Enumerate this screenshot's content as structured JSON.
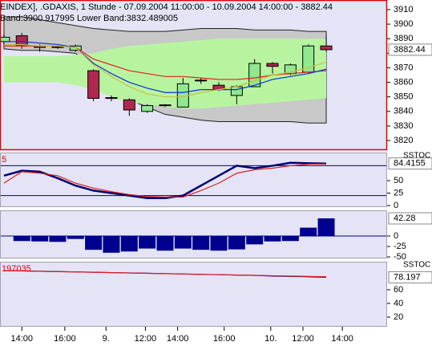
{
  "chart_data": [
    {
      "type": "candlestick",
      "title": "EINDEX], .GDAXIS, 1 Stunde - 07.09.2004 11:00:00 - 10.09.2004 14:00:00 - 3882.44",
      "subtitle": "Band:3900.917995 Lower Band:3832.489005",
      "x": [
        0,
        1,
        2,
        3,
        4,
        5,
        6,
        7,
        8,
        9,
        10,
        11,
        12,
        13,
        14,
        15,
        16,
        17,
        18
      ],
      "open": [
        3888,
        3892,
        3885,
        3884,
        3882,
        3868,
        3849,
        3848,
        3840,
        3844,
        3843,
        3861,
        3858,
        3851,
        3857,
        3873,
        3866,
        3867,
        3885
      ],
      "high": [
        3893,
        3894,
        3886,
        3885,
        3886,
        3869,
        3851,
        3849,
        3845,
        3845,
        3863,
        3863,
        3860,
        3858,
        3876,
        3874,
        3873,
        3886,
        3892
      ],
      "low": [
        3886,
        3883,
        3881,
        3883,
        3881,
        3847,
        3847,
        3837,
        3839,
        3843,
        3843,
        3859,
        3854,
        3845,
        3857,
        3866,
        3865,
        3866,
        3881
      ],
      "close": [
        3891,
        3885,
        3884,
        3884.5,
        3885,
        3849,
        3849.5,
        3841,
        3844,
        3844.5,
        3859,
        3861.5,
        3855,
        3857,
        3873,
        3871,
        3872,
        3885,
        3882.44
      ],
      "up_color": "#90e890",
      "down_color": "#b02850",
      "bands": [
        {
          "color": "#c8c8c8",
          "upper": [
            3905,
            3905,
            3903,
            3901,
            3899,
            3897,
            3896,
            3895,
            3895,
            3895,
            3896,
            3897,
            3897,
            3897,
            3896,
            3896,
            3896,
            3895,
            3895
          ],
          "lower": [
            3883,
            3882,
            3882,
            3881,
            3880,
            3870,
            3858,
            3848,
            3843,
            3838,
            3836,
            3834,
            3833,
            3833,
            3833,
            3833,
            3833,
            3832,
            3832
          ]
        },
        {
          "color": "#b8f4a0",
          "upper": [
            3878,
            3878,
            3878,
            3878,
            3879,
            3880,
            3883,
            3885,
            3886,
            3887,
            3888,
            3889,
            3890,
            3890,
            3890,
            3890,
            3890,
            3890,
            3890
          ],
          "lower": [
            3860,
            3860,
            3860,
            3860,
            3858,
            3855,
            3850,
            3846,
            3845,
            3843,
            3842,
            3842,
            3843,
            3844,
            3845,
            3846,
            3847,
            3848,
            3849
          ]
        }
      ],
      "series": [
        {
          "color": "#e02020",
          "values": [
            3885,
            3885,
            3885,
            3885,
            3884,
            3876,
            3872,
            3868,
            3866,
            3864,
            3864,
            3863,
            3862,
            3862,
            3863,
            3865,
            3866,
            3867,
            3868
          ]
        },
        {
          "color": "#1030d0",
          "values": [
            3888,
            3888,
            3887,
            3886,
            3884,
            3873,
            3866,
            3860,
            3856,
            3853,
            3853,
            3855,
            3855,
            3855,
            3858,
            3862,
            3864,
            3866,
            3869
          ]
        },
        {
          "color": "#c8c040",
          "values": [
            3886,
            3886,
            3885,
            3885,
            3884,
            3872,
            3864,
            3857,
            3852,
            3850,
            3850,
            3853,
            3855,
            3857,
            3861,
            3865,
            3867,
            3870,
            3874
          ]
        }
      ],
      "xlim": [
        -0.22,
        21.4
      ],
      "ylim": [
        3813.4,
        3916.6
      ],
      "yticks": [
        3820,
        3830,
        3840,
        3850,
        3860,
        3870,
        3880,
        3890,
        3900,
        3910
      ]
    },
    {
      "type": "line",
      "title": "5",
      "corner_label": "SSTOC",
      "x": [
        0,
        1,
        2,
        3,
        4,
        5,
        6,
        7,
        8,
        9,
        10,
        11,
        12,
        13,
        14,
        15,
        16,
        17,
        18
      ],
      "series": [
        {
          "color": "#000070",
          "values": [
            60,
            70,
            68,
            55,
            40,
            30,
            25,
            20,
            15,
            15,
            20,
            40,
            60,
            80,
            75,
            80,
            86,
            85,
            84.4155
          ]
        },
        {
          "color": "#e02020",
          "values": [
            45,
            68,
            65,
            60,
            45,
            35,
            28,
            22,
            18,
            17,
            17,
            30,
            45,
            65,
            72,
            75,
            80,
            83,
            84
          ]
        }
      ],
      "hlines": [
        80,
        20
      ],
      "xlim": [
        -0.22,
        21.4
      ],
      "ylim": [
        -3.2,
        106.5
      ],
      "yticks": [
        0,
        25,
        50
      ]
    },
    {
      "type": "bar",
      "x": [
        1,
        2,
        3,
        4,
        5,
        6,
        7,
        8,
        9,
        10,
        11,
        12,
        13,
        14,
        15,
        16,
        17,
        18
      ],
      "values": [
        -12,
        -13,
        -14,
        -7,
        -33,
        -40,
        -37,
        -30,
        -35,
        -30,
        -33,
        -35,
        -32,
        -20,
        -13,
        -12,
        20,
        42.28
      ],
      "color": "#000090",
      "hlines": [
        0
      ],
      "xlim": [
        -0.22,
        21.4
      ],
      "ylim": [
        -53.8,
        61.5
      ],
      "yticks": [
        -50,
        -25,
        0
      ]
    },
    {
      "type": "line",
      "title": "197035",
      "corner_label": "SSTOC",
      "x": [
        0,
        1,
        2,
        3,
        4,
        5,
        6,
        7,
        8,
        9,
        10,
        11,
        12,
        13,
        14,
        15,
        16,
        17,
        18
      ],
      "series": [
        {
          "color": "#000070",
          "values": [
            88,
            87.6,
            87.1,
            86.6,
            86.1,
            85.6,
            85.1,
            84.6,
            84.1,
            83.6,
            83,
            82.5,
            82,
            81.5,
            81,
            80,
            79.5,
            79,
            78.197
          ]
        },
        {
          "color": "#e02020",
          "values": [
            88,
            87.5,
            87,
            86.5,
            86,
            85.5,
            85,
            84.5,
            84,
            83.5,
            83,
            82.5,
            82,
            81.5,
            81,
            80.5,
            80,
            79.5,
            79
          ]
        }
      ],
      "xlim": [
        -0.22,
        21.4
      ],
      "ylim": [
        5.9,
        101
      ],
      "yticks": [
        20,
        40,
        60
      ],
      "xticks": [
        {
          "value": 1,
          "label": "14:00"
        },
        {
          "value": 3.4,
          "label": "16:00"
        },
        {
          "value": 5.7,
          "label": "9."
        },
        {
          "value": 7.9,
          "label": "12:00"
        },
        {
          "value": 9.7,
          "label": "14:00"
        },
        {
          "value": 12.3,
          "label": "16:00"
        },
        {
          "value": 14.9,
          "label": "10."
        },
        {
          "value": 16.7,
          "label": "12:00"
        },
        {
          "value": 18.9,
          "label": "14:00"
        }
      ]
    }
  ]
}
